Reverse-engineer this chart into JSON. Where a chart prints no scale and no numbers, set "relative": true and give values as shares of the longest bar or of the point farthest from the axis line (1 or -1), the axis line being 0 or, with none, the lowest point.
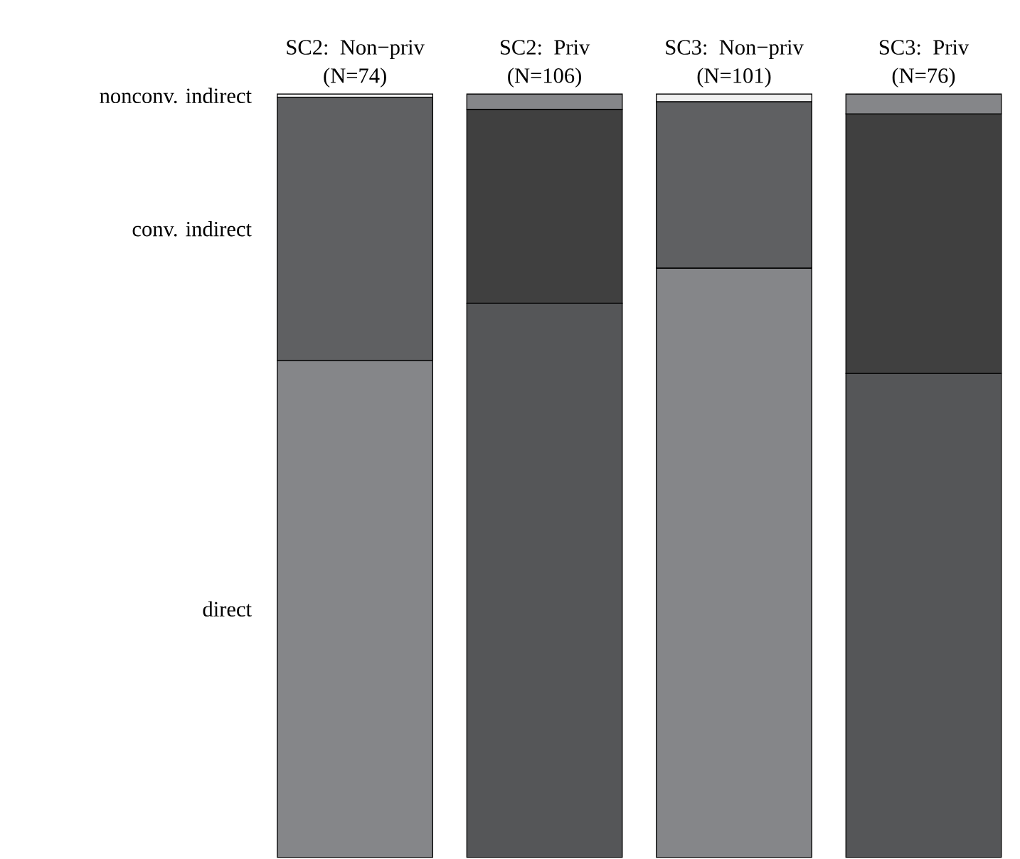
{
  "chart_data": {
    "type": "bar",
    "stacked": true,
    "relative": true,
    "categories": [
      "SC2: Non−priv (N=74)",
      "SC2: Priv (N=106)",
      "SC3: Non−priv (N=101)",
      "SC3: Priv (N=76)"
    ],
    "series": [
      {
        "name": "direct",
        "colors": [
          "#858689",
          "#555658",
          "#858689",
          "#555658"
        ],
        "values": [
          0.651,
          0.726,
          0.772,
          0.634
        ]
      },
      {
        "name": "conv. indirect",
        "colors": [
          "#5f6062",
          "#404040",
          "#5f6062",
          "#404040"
        ],
        "values": [
          0.345,
          0.254,
          0.218,
          0.34
        ]
      },
      {
        "name": "nonconv. indirect",
        "colors": [
          "#ffffff",
          "#858689",
          "#f0f0f0",
          "#858689"
        ],
        "values": [
          0.004,
          0.02,
          0.01,
          0.026
        ]
      }
    ]
  }
}
